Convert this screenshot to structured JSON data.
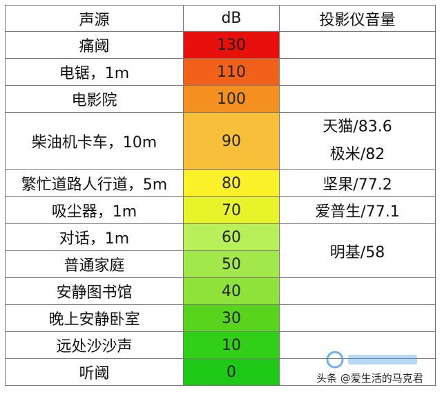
{
  "table": {
    "headers": [
      "声源",
      "dB",
      "投影仪音量"
    ],
    "rows": [
      {
        "source": "痛阈",
        "db": "130",
        "color": "#e8100c"
      },
      {
        "source": "电锯，1m",
        "db": "110",
        "color": "#f2611a"
      },
      {
        "source": "电影院",
        "db": "100",
        "color": "#f49020"
      },
      {
        "source": "柴油机卡车，10m",
        "db": "90",
        "color": "#f8bf3a"
      },
      {
        "source": "繁忙道路人行道，5m",
        "db": "80",
        "color": "#fbf12a"
      },
      {
        "source": "吸尘器，1m",
        "db": "70",
        "color": "#e6f429"
      },
      {
        "source": "对话，1m",
        "db": "60",
        "color": "#b9ef58"
      },
      {
        "source": "普通家庭",
        "db": "50",
        "color": "#a3e84b"
      },
      {
        "source": "安静图书馆",
        "db": "40",
        "color": "#8ee23a"
      },
      {
        "source": "晚上安静卧室",
        "db": "30",
        "color": "#59d41c"
      },
      {
        "source": "远处沙沙声",
        "db": "10",
        "color": "#32cf18"
      },
      {
        "source": "听阈",
        "db": "0",
        "color": "#1ec916"
      }
    ],
    "projector_values": [
      "天猫/83.6",
      "极米/82",
      "坚果/77.2",
      "爱普生/77.1",
      "明基/58"
    ]
  },
  "watermark": {
    "text": "头条 @爱生活的马克君"
  }
}
